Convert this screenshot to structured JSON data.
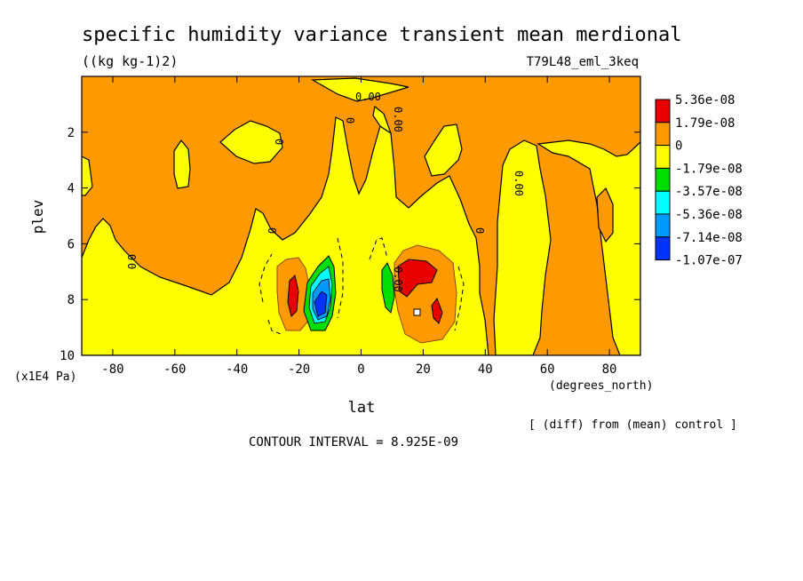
{
  "figure": {
    "title": "specific humidity variance transient mean merdional",
    "units": "((kg kg-1)2)",
    "run_label": "T79L48_eml_3keq",
    "y_scale_note": "(x1E4 Pa)",
    "x_units_note": "(degrees_north)",
    "diff_note": "[ (diff) from (mean) control ]",
    "contour_interval": "CONTOUR INTERVAL = 8.925E-09"
  },
  "chart_data": {
    "type": "contour",
    "xlabel": "lat",
    "ylabel": "plev",
    "xlim": [
      -90,
      90
    ],
    "ylim": [
      10,
      0
    ],
    "x_ticks": [
      -80,
      -60,
      -40,
      -20,
      0,
      20,
      40,
      60,
      80
    ],
    "x_tick_labels": [
      "-80",
      "-60",
      "-40",
      "-20",
      "0",
      "20",
      "40",
      "60",
      "80"
    ],
    "y_ticks": [
      2,
      4,
      6,
      8,
      10
    ],
    "y_tick_labels": [
      "2",
      "4",
      "6",
      "8",
      "10"
    ],
    "contour_labels": [
      "0.00",
      "0",
      "0",
      "0",
      "0",
      "0",
      "0.00",
      "0.00",
      "0",
      "0.00"
    ],
    "legend": [
      {
        "label": "5.36e-08",
        "color": "#e60000"
      },
      {
        "label": "1.79e-08",
        "color": "#ff9900"
      },
      {
        "label": "0",
        "color": "#ffff00"
      },
      {
        "label": "-1.79e-08",
        "color": "#00dd00"
      },
      {
        "label": "-3.57e-08",
        "color": "#00ffff"
      },
      {
        "label": "-5.36e-08",
        "color": "#0099ff"
      },
      {
        "label": "-7.14e-08",
        "color": "#0033ff"
      },
      {
        "label": "-1.07e-07",
        "color": "#0033ff"
      }
    ],
    "regions": [
      {
        "level": "0 to 1.79e-08",
        "color": "#ff9900",
        "desc": "background orange"
      },
      {
        "level": "-1.79e-08 to 0",
        "color": "#ffff00",
        "desc": "lower troposphere yellow"
      },
      {
        "level": "> 5.36e-08",
        "color": "#e60000",
        "desc": "SH max near 22S"
      },
      {
        "level": "> 5.36e-08",
        "color": "#e60000",
        "desc": "NH max near 17N"
      },
      {
        "level": "-3.57e-08",
        "color": "#00dd00",
        "desc": "SH min near 12S"
      },
      {
        "level": "-1.07e-07",
        "color": "#0033ff",
        "desc": "SH min core"
      }
    ],
    "grid": false
  }
}
